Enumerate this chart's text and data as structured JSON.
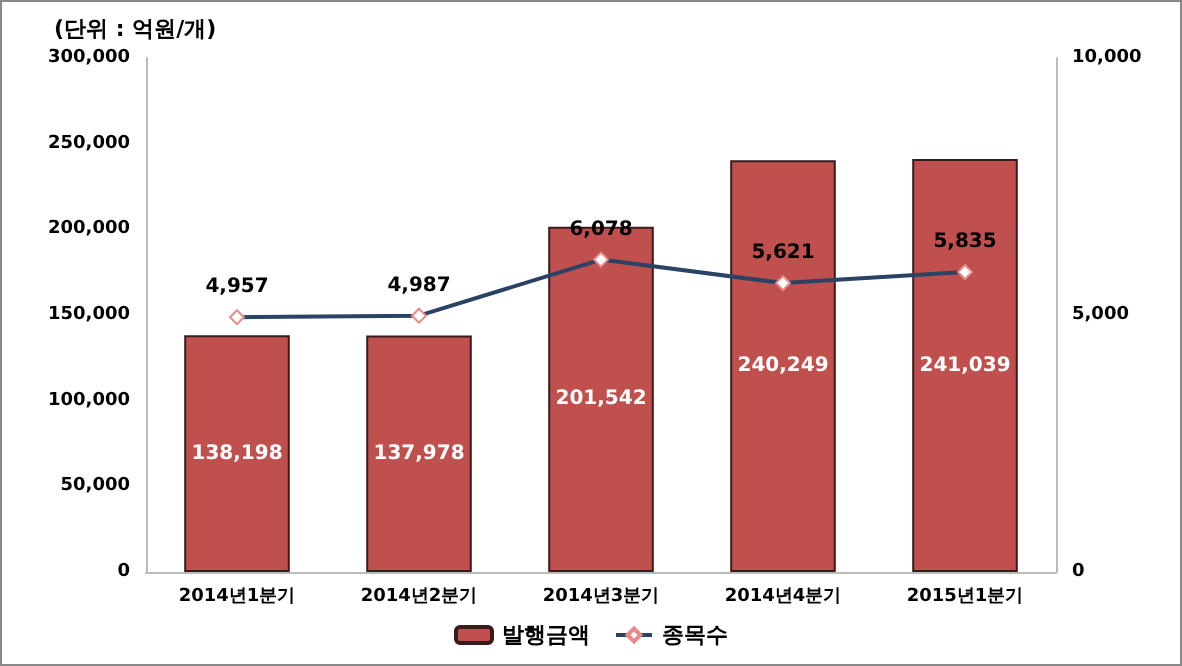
{
  "chart_data": {
    "type": "bar",
    "categories": [
      "2014년1분기",
      "2014년2분기",
      "2014년3분기",
      "2014년4분기",
      "2015년1분기"
    ],
    "series": [
      {
        "name": "발행금액",
        "color": "#c0504d",
        "values": [
          138198,
          137978,
          201542,
          240249,
          241039
        ],
        "value_labels": [
          "138,198",
          "137,978",
          "201,542",
          "240,249",
          "241,039"
        ]
      },
      {
        "name": "종목수",
        "type": "line",
        "axis": "y2",
        "color": "#2a4263",
        "values": [
          4957,
          4987,
          6078,
          5621,
          5835
        ],
        "value_labels": [
          "4,957",
          "4,987",
          "6,078",
          "5,621",
          "5,835"
        ]
      }
    ],
    "ylim": [
      0,
      300000
    ],
    "yticks": [
      0,
      {
        "value": 50000,
        "label": "50,000"
      },
      {
        "value": 100000,
        "label": "100,000"
      },
      {
        "value": 150000,
        "label": "150,000"
      },
      {
        "value": 200000,
        "label": "200,000"
      },
      {
        "value": 250000,
        "label": "250,000"
      },
      {
        "value": 300000,
        "label": "300,000"
      }
    ],
    "y2lim": [
      0,
      10000
    ],
    "y2ticks": [
      0,
      {
        "value": 5000,
        "label": "5,000"
      },
      {
        "value": 10000,
        "label": "10,000"
      }
    ],
    "annotations": [
      "(단위 : 억원/개)"
    ],
    "legend": "bottom",
    "marker": "diamond",
    "grid": false
  }
}
